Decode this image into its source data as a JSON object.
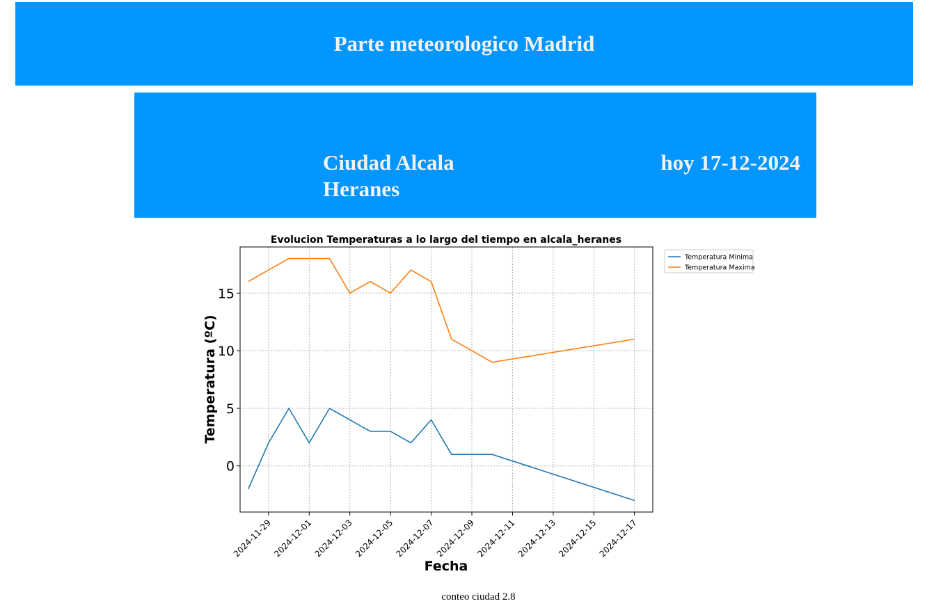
{
  "header": {
    "title": "Parte meteorologico Madrid"
  },
  "city_panel": {
    "city": "Ciudad Alcala Heranes",
    "date": "hoy 17-12-2024"
  },
  "footer": {
    "text": "conteo ciudad 2.8"
  },
  "chart_data": {
    "type": "line",
    "title": "Evolucion Temperaturas a lo largo del tiempo en alcala_heranes",
    "xlabel": "Fecha",
    "ylabel": "Temperatura (ºC)",
    "x": [
      "2024-11-28",
      "2024-11-29",
      "2024-11-30",
      "2024-12-01",
      "2024-12-02",
      "2024-12-03",
      "2024-12-04",
      "2024-12-05",
      "2024-12-06",
      "2024-12-07",
      "2024-12-08",
      "2024-12-10",
      "2024-12-17"
    ],
    "xticks": [
      "2024-11-29",
      "2024-12-01",
      "2024-12-03",
      "2024-12-05",
      "2024-12-07",
      "2024-12-09",
      "2024-12-11",
      "2024-12-13",
      "2024-12-15",
      "2024-12-17"
    ],
    "yticks": [
      0,
      5,
      10,
      15
    ],
    "ylim": [
      -4,
      19
    ],
    "xlim": [
      "2024-11-27T14:24",
      "2024-12-17T21:36"
    ],
    "grid": true,
    "legend_position": "outside top-right",
    "series": [
      {
        "name": "Temperatura Minima",
        "color": "#1f77b4",
        "values": [
          -2,
          2,
          5,
          2,
          5,
          4,
          3,
          3,
          2,
          4,
          1,
          1,
          -3
        ]
      },
      {
        "name": "Temperatura Maxima",
        "color": "#ff7f0e",
        "values": [
          16,
          17,
          18,
          18,
          18,
          15,
          16,
          15,
          17,
          16,
          11,
          9,
          11
        ]
      }
    ]
  }
}
